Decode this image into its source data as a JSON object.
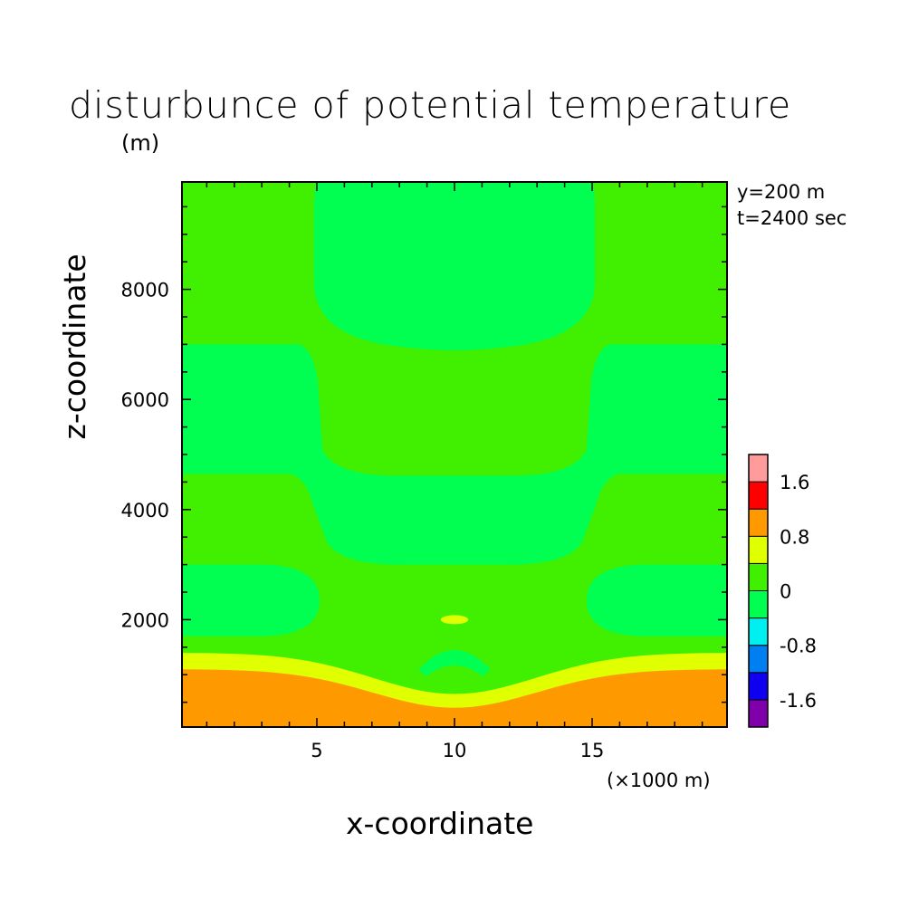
{
  "title": "disturbunce of potential temperature",
  "units_label": "(m)",
  "info": {
    "y_line": "y=200 m",
    "t_line": "t=2400 sec"
  },
  "chart_data": {
    "type": "heatmap",
    "title": "disturbunce of potential temperature",
    "xlabel": "x-coordinate",
    "ylabel": "z-coordinate",
    "x_unit": "(×1000 m)",
    "y_unit": "(m)",
    "xlim": [
      0.1,
      19.9
    ],
    "ylim": [
      50,
      9950
    ],
    "x_ticks": [
      5,
      10,
      15
    ],
    "y_ticks": [
      2000,
      4000,
      6000,
      8000
    ],
    "colorbar": {
      "tick_labels": [
        "1.6",
        "0.8",
        "0",
        "-0.8",
        "-1.6"
      ],
      "tick_values": [
        1.6,
        0.8,
        0,
        -0.8,
        -1.6
      ],
      "levels": [
        {
          "min": -2.0,
          "max": -1.6,
          "color": "#7f00aa"
        },
        {
          "min": -1.6,
          "max": -1.2,
          "color": "#1000f0"
        },
        {
          "min": -1.2,
          "max": -0.8,
          "color": "#0080f0"
        },
        {
          "min": -0.8,
          "max": -0.4,
          "color": "#00f0f0"
        },
        {
          "min": -0.4,
          "max": 0.0,
          "color": "#00ff50"
        },
        {
          "min": 0.0,
          "max": 0.4,
          "color": "#40f000"
        },
        {
          "min": 0.4,
          "max": 0.8,
          "color": "#e0ff00"
        },
        {
          "min": 0.8,
          "max": 1.2,
          "color": "#ff9900"
        },
        {
          "min": 1.2,
          "max": 1.6,
          "color": "#ff0000"
        },
        {
          "min": 1.6,
          "max": 2.0,
          "color": "#ff9b9b"
        }
      ]
    },
    "regions": [
      {
        "name": "background",
        "level": "0 to 0.4",
        "color": "#40f000"
      },
      {
        "name": "upper-cool-cell",
        "level": "-0.4 to 0",
        "color": "#00ff50",
        "x_range": [
          4.9,
          15.1
        ],
        "z_range": [
          6900,
          9950
        ]
      },
      {
        "name": "middle-cool-band",
        "level": "-0.4 to 0",
        "color": "#00ff50",
        "x_range": [
          0.1,
          19.9
        ],
        "z_range": [
          3000,
          7000
        ]
      },
      {
        "name": "left-cool-lobe",
        "level": "-0.4 to 0",
        "color": "#00ff50",
        "x_range": [
          0.1,
          5.1
        ],
        "z_range": [
          1700,
          3000
        ]
      },
      {
        "name": "right-cool-lobe",
        "level": "-0.4 to 0",
        "color": "#00ff50",
        "x_range": [
          14.8,
          19.9
        ],
        "z_range": [
          1700,
          3000
        ]
      },
      {
        "name": "central-cool-arc",
        "level": "-0.4 to 0",
        "color": "#00ff50",
        "x_range": [
          8.7,
          11.3
        ],
        "z_range": [
          1000,
          1500
        ]
      },
      {
        "name": "central-warm-blob",
        "level": "0.4 to 0.8",
        "color": "#e0ff00",
        "x_range": [
          9.5,
          10.5
        ],
        "z_range": [
          1900,
          2100
        ]
      },
      {
        "name": "warm-band",
        "level": "0.4 to 0.8",
        "color": "#e0ff00",
        "x_range": [
          0.1,
          19.9
        ],
        "z_range": [
          400,
          1400
        ]
      },
      {
        "name": "surface-hot-layer",
        "level": "0.8 to 1.2",
        "color": "#ff9900",
        "x_range": [
          0.1,
          19.9
        ],
        "z_range": [
          50,
          1100
        ]
      }
    ]
  }
}
